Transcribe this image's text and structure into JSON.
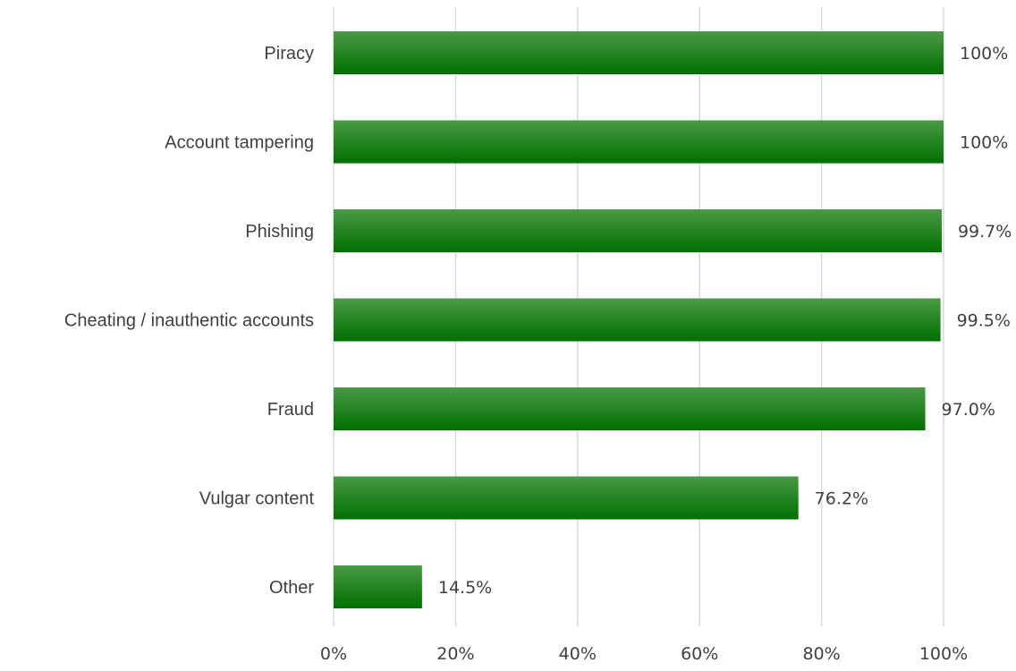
{
  "chart_data": {
    "type": "bar",
    "orientation": "horizontal",
    "categories": [
      "Piracy",
      "Account tampering",
      "Phishing",
      "Cheating / inauthentic accounts",
      "Fraud",
      "Vulgar content",
      "Other"
    ],
    "values": [
      100,
      100,
      99.7,
      99.5,
      97.0,
      76.2,
      14.5
    ],
    "value_labels": [
      "100%",
      "100%",
      "99.7%",
      "99.5%",
      "97.0%",
      "76.2%",
      "14.5%"
    ],
    "x_ticks": [
      "0%",
      "20%",
      "40%",
      "60%",
      "80%",
      "100%"
    ],
    "x_tick_values": [
      0,
      20,
      40,
      60,
      80,
      100
    ],
    "xlim": [
      0,
      100
    ],
    "title": "",
    "xlabel": "",
    "ylabel": "",
    "grid": true,
    "legend": "none",
    "colors": {
      "bar_top": "#4a9a45",
      "bar_bottom": "#007000",
      "grid": "#d9d9d9",
      "text": "#404040"
    }
  }
}
